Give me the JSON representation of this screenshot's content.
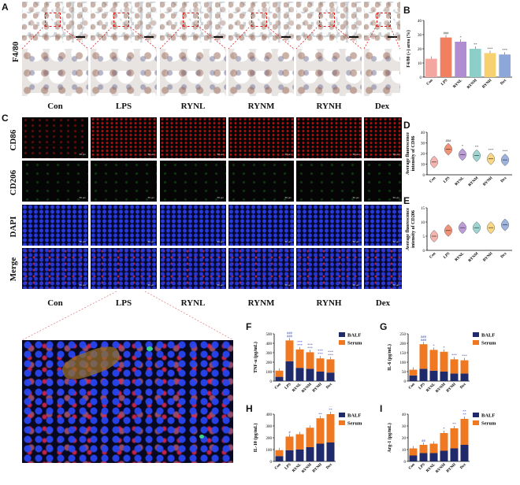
{
  "panels": {
    "A": "A",
    "B": "B",
    "C": "C",
    "D": "D",
    "E": "E",
    "F": "F",
    "G": "G",
    "H": "H",
    "I": "I"
  },
  "groups": [
    "Con",
    "LPS",
    "RYNL",
    "RYNM",
    "RYNH",
    "Dex"
  ],
  "row_labels": {
    "f480": "F4/80",
    "cd86": "CD86",
    "cd206": "CD206",
    "dapi": "DAPI",
    "merge": "Merge"
  },
  "scale_text": "50 μm",
  "colors": {
    "balf": "#1f2a6b",
    "serum": "#f07820",
    "box": "#e02020"
  },
  "chart_data": [
    {
      "id": "B",
      "type": "bar",
      "ylabel": "F4/80 (+) area (%)",
      "categories": [
        "Con",
        "LPS",
        "RYNL",
        "RYNM",
        "RYNH",
        "Dex"
      ],
      "values": [
        13,
        28,
        25,
        20,
        17,
        16
      ],
      "ylim": [
        0,
        40
      ],
      "yticks": [
        0,
        10,
        20,
        30,
        40
      ],
      "colors": [
        "#f4a7a0",
        "#f08060",
        "#b08cd0",
        "#8ccfc8",
        "#f7d070",
        "#8ca7d8"
      ],
      "annotations": [
        "",
        "###",
        "*",
        "**",
        "***",
        "***"
      ]
    },
    {
      "id": "D",
      "type": "violin",
      "ylabel": "Average fluorescence intensity of CD86",
      "categories": [
        "Con",
        "LPS",
        "RYNL",
        "RYNM",
        "RYNH",
        "Dex"
      ],
      "values": [
        12,
        24,
        19,
        18,
        15,
        14
      ],
      "ylim": [
        0,
        40
      ],
      "yticks": [
        0,
        10,
        20,
        30,
        40
      ],
      "colors": [
        "#f4a7a0",
        "#f08060",
        "#b08cd0",
        "#8ccfc8",
        "#f7d070",
        "#8ca7d8"
      ],
      "annotations": [
        "",
        "###",
        "*",
        "**",
        "***",
        "***"
      ]
    },
    {
      "id": "E",
      "type": "violin",
      "ylabel": "Average fluorescence intensity of CD206",
      "categories": [
        "Con",
        "LPS",
        "RYNL",
        "RYNM",
        "RYNH",
        "Dex"
      ],
      "values": [
        5,
        7,
        8,
        8,
        8,
        9
      ],
      "ylim": [
        0,
        15
      ],
      "yticks": [
        0,
        5,
        10,
        15
      ],
      "colors": [
        "#f4a7a0",
        "#f08060",
        "#b08cd0",
        "#8ccfc8",
        "#f7d070",
        "#8ca7d8"
      ],
      "annotations": [
        "",
        "",
        "",
        "",
        "",
        ""
      ]
    },
    {
      "id": "F",
      "type": "bar",
      "stacked": true,
      "ylabel": "TNF-α (pg/mL)",
      "categories": [
        "Con",
        "LPS",
        "RYNL",
        "RYNM",
        "RYNH",
        "Dex"
      ],
      "ylim": [
        0,
        500
      ],
      "yticks": [
        0,
        100,
        200,
        300,
        400,
        500
      ],
      "series": [
        {
          "name": "BALF",
          "values": [
            45,
            210,
            140,
            130,
            100,
            90
          ]
        },
        {
          "name": "Serum",
          "values": [
            65,
            220,
            195,
            175,
            140,
            140
          ]
        }
      ],
      "annotations": [
        "",
        "###\n###",
        "***\n***",
        "***\n***",
        "***\n***",
        "***\n***"
      ]
    },
    {
      "id": "G",
      "type": "bar",
      "stacked": true,
      "ylabel": "IL-6 (pg/mL)",
      "categories": [
        "Con",
        "LPS",
        "RYNL",
        "RYNM",
        "RYNH",
        "Dex"
      ],
      "ylim": [
        0,
        250
      ],
      "yticks": [
        0,
        50,
        100,
        150,
        200,
        250
      ],
      "series": [
        {
          "name": "BALF",
          "values": [
            30,
            65,
            55,
            50,
            40,
            40
          ]
        },
        {
          "name": "Serum",
          "values": [
            30,
            130,
            110,
            105,
            75,
            70
          ]
        }
      ],
      "annotations": [
        "",
        "###\n###",
        "*",
        "*",
        "***",
        "***"
      ]
    },
    {
      "id": "H",
      "type": "bar",
      "stacked": true,
      "ylabel": "IL-10 (pg/mL)",
      "categories": [
        "Con",
        "LPS",
        "RYNL",
        "RYNM",
        "RYNH",
        "Dex"
      ],
      "ylim": [
        0,
        400
      ],
      "yticks": [
        0,
        100,
        200,
        300,
        400
      ],
      "series": [
        {
          "name": "BALF",
          "values": [
            45,
            95,
            100,
            120,
            150,
            160
          ]
        },
        {
          "name": "Serum",
          "values": [
            50,
            115,
            130,
            165,
            215,
            240
          ]
        }
      ],
      "annotations": [
        "",
        "#",
        "",
        "",
        "**",
        "**\n**"
      ]
    },
    {
      "id": "I",
      "type": "bar",
      "stacked": true,
      "ylabel": "Arg-1 (pg/mL)",
      "categories": [
        "Con",
        "LPS",
        "RYNL",
        "RYNM",
        "RYNH",
        "Dex"
      ],
      "ylim": [
        0,
        40
      ],
      "yticks": [
        0,
        10,
        20,
        30,
        40
      ],
      "series": [
        {
          "name": "BALF",
          "values": [
            5,
            7,
            7,
            9,
            11,
            14
          ]
        },
        {
          "name": "Serum",
          "values": [
            6,
            7,
            8,
            15,
            17,
            22
          ]
        }
      ],
      "annotations": [
        "",
        "##",
        "",
        "*",
        "**",
        "**\n**"
      ]
    }
  ]
}
